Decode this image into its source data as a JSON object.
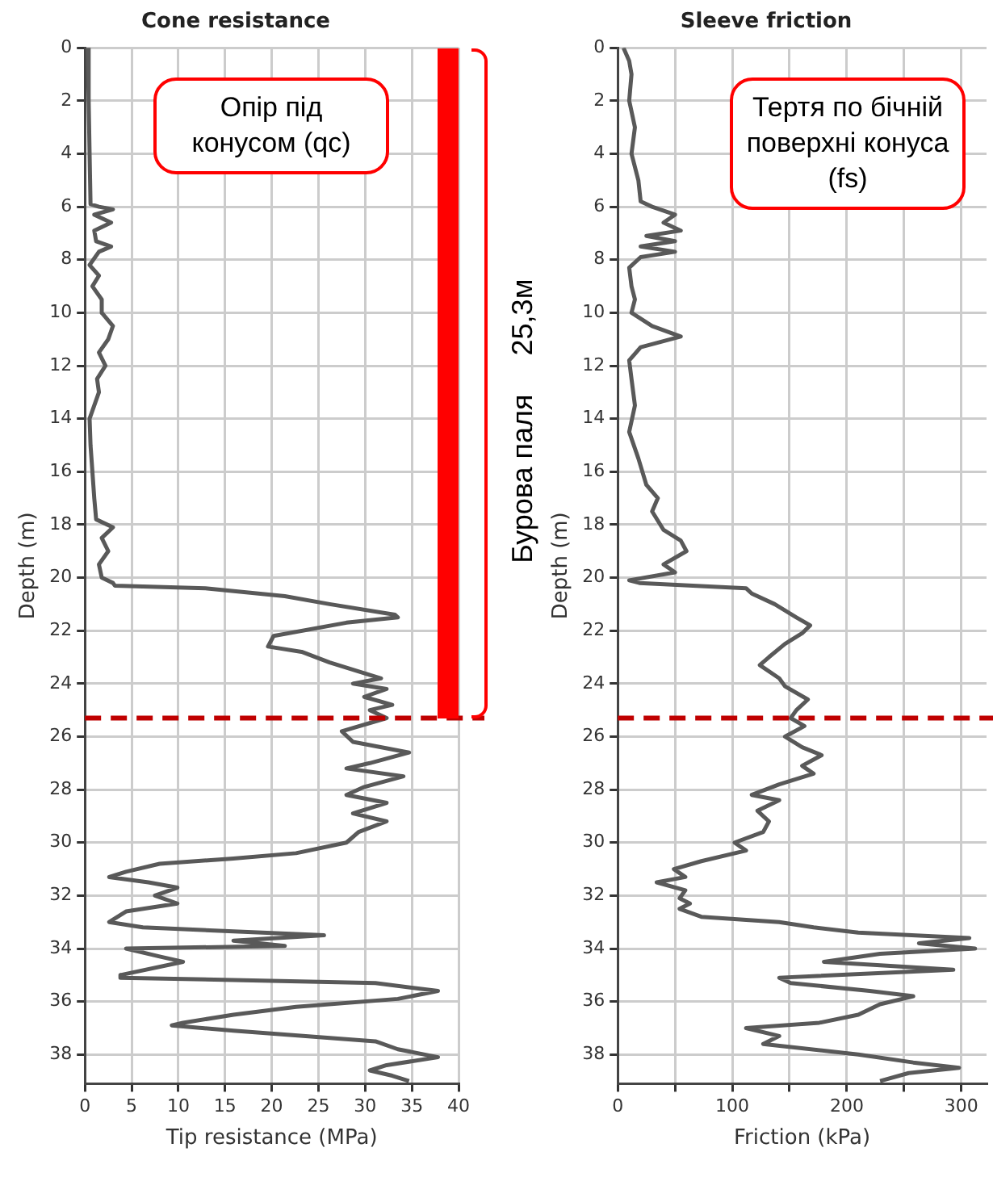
{
  "chart_data": [
    {
      "type": "line",
      "orientation": "horizontal",
      "title": "Cone resistance",
      "xlabel": "Tip resistance (MPa)",
      "ylabel": "Depth (m)",
      "xlim": [
        0,
        40
      ],
      "xticks": [
        0,
        5,
        10,
        15,
        20,
        25,
        30,
        35,
        40
      ],
      "ylim": [
        39.1,
        0
      ],
      "yticks": [
        0,
        2,
        4,
        6,
        8,
        10,
        12,
        14,
        16,
        18,
        20,
        22,
        24,
        26,
        28,
        30,
        32,
        34,
        36,
        38
      ],
      "grid": true,
      "legend": false,
      "marker": "none",
      "line_style": "solid",
      "ref_lines": [
        {
          "axis": "y",
          "value": 25.3,
          "color": "#c00000",
          "line_style": "dashed"
        }
      ],
      "annotations": [
        "Опір під конусом (qc)",
        "Бурова паля",
        "25,3м"
      ],
      "series": [
        {
          "color": "#595959",
          "x": [
            0,
            2,
            4,
            5.9,
            6.0,
            6.1,
            6.3,
            6.6,
            6.9,
            7.3,
            7.5,
            7.7,
            8.2,
            8.6,
            9,
            9.5,
            10,
            10.5,
            11,
            11.5,
            12,
            12.5,
            13,
            14,
            15,
            16,
            17,
            17.8,
            18.1,
            18.5,
            19,
            19.5,
            20,
            20.2,
            20.3,
            20.4,
            20.7,
            21.0,
            21.4,
            21.5,
            21.7,
            22.2,
            22.6,
            22.8,
            23.2,
            23.8,
            24.0,
            24.2,
            24.5,
            24.8,
            25.0,
            25.3,
            25.8,
            26.2,
            26.6,
            27.0,
            27.2,
            27.5,
            27.9,
            28.2,
            28.5,
            28.9,
            29.2,
            29.6,
            30.0,
            30.4,
            30.6,
            30.8,
            31.1,
            31.3,
            31.5,
            31.7,
            32.0,
            32.3,
            32.6,
            33.0,
            33.2,
            33.5,
            33.7,
            33.9,
            34.0,
            34.3,
            34.5,
            35.0,
            35.1,
            35.3,
            35.6,
            35.9,
            36.2,
            36.5,
            36.8,
            36.9,
            37.1,
            37.5,
            37.8,
            38.1,
            38.4,
            38.6,
            38.8,
            39.0
          ],
          "values": [
            0.3,
            0.4,
            0.5,
            0.6,
            1.5,
            3,
            1,
            2.8,
            1,
            1.2,
            2.8,
            1.5,
            0.5,
            1.5,
            0.8,
            1.8,
            1.8,
            3,
            2.5,
            1.5,
            2.2,
            1.3,
            1.5,
            0.5,
            0.6,
            0.8,
            1.0,
            1.2,
            3,
            1.8,
            2.5,
            1.5,
            1.8,
            3,
            3.2,
            12.9,
            21.4,
            26.2,
            33.2,
            33.5,
            28,
            20.2,
            19.6,
            23.2,
            26.2,
            31.7,
            28.7,
            32.3,
            29.9,
            32.9,
            30.5,
            32.3,
            27.5,
            28.7,
            34.7,
            30.5,
            28,
            34.1,
            29.9,
            28,
            32.3,
            28.7,
            32.3,
            29.3,
            28,
            22.6,
            15.9,
            8,
            4.4,
            2.6,
            6.8,
            9.9,
            7.5,
            9.9,
            4.4,
            2.6,
            6.2,
            25.6,
            15.9,
            21.4,
            4.4,
            8,
            10.5,
            3.8,
            3.8,
            31.1,
            37.8,
            33.5,
            22.6,
            15.9,
            10.5,
            9.3,
            15.9,
            31.1,
            33.5,
            37.8,
            32.3,
            30.5,
            32.9,
            34.7
          ]
        }
      ]
    },
    {
      "type": "line",
      "orientation": "horizontal",
      "title": "Sleeve friction",
      "xlabel": "Friction (kPa)",
      "ylabel": "Depth (m)",
      "xlim": [
        0,
        322
      ],
      "xticks": [
        0,
        {
          "value": 50,
          "label": null
        },
        100,
        {
          "value": 150,
          "label": null
        },
        200,
        {
          "value": 250,
          "label": null
        },
        300
      ],
      "ylim": [
        39.1,
        0
      ],
      "yticks": [
        0,
        2,
        4,
        6,
        8,
        10,
        12,
        14,
        16,
        18,
        20,
        22,
        24,
        26,
        28,
        30,
        32,
        34,
        36,
        38
      ],
      "grid": true,
      "legend": false,
      "marker": "none",
      "line_style": "solid",
      "ref_lines": [
        {
          "axis": "y",
          "value": 25.3,
          "color": "#c00000",
          "line_style": "dashed"
        }
      ],
      "annotations": [
        "Тертя по бічній поверхні конуса (fs)"
      ],
      "series": [
        {
          "color": "#595959",
          "x": [
            0,
            0.5,
            1,
            2,
            3,
            4,
            5,
            5.8,
            6.0,
            6.3,
            6.6,
            6.9,
            7.1,
            7.3,
            7.5,
            7.7,
            7.9,
            8.3,
            9,
            9.5,
            10,
            10.5,
            10.9,
            11.3,
            11.8,
            12.5,
            13.5,
            14.5,
            15.5,
            16.5,
            17,
            17.5,
            18.2,
            18.6,
            19,
            19.5,
            19.8,
            20.1,
            20.2,
            20.4,
            20.6,
            21.0,
            21.5,
            21.8,
            22.1,
            22.5,
            23.0,
            23.3,
            23.8,
            24.1,
            24.6,
            25.0,
            25.3,
            25.6,
            26.0,
            26.4,
            26.7,
            27.1,
            27.4,
            27.8,
            28.2,
            28.4,
            28.8,
            29.2,
            29.6,
            30.0,
            30.3,
            30.7,
            31.0,
            31.3,
            31.5,
            31.8,
            32.1,
            32.3,
            32.5,
            32.8,
            33.0,
            33.2,
            33.4,
            33.6,
            33.8,
            34.0,
            34.2,
            34.5,
            34.8,
            35.1,
            35.3,
            35.6,
            35.8,
            36.1,
            36.5,
            36.8,
            37.0,
            37.3,
            37.6,
            38.0,
            38.3,
            38.5,
            38.7,
            39.0
          ],
          "values": [
            5,
            10,
            12,
            10,
            15,
            12,
            18,
            20,
            30,
            50,
            40,
            55,
            25,
            50,
            20,
            50,
            20,
            10,
            12,
            15,
            12,
            30,
            55,
            20,
            10,
            12,
            15,
            10,
            18,
            25,
            35,
            30,
            40,
            55,
            60,
            40,
            50,
            10,
            19,
            112,
            117,
            137,
            156,
            168,
            161,
            146,
            132,
            124,
            141,
            146,
            166,
            156,
            151,
            163,
            146,
            161,
            178,
            161,
            171,
            141,
            117,
            141,
            122,
            132,
            127,
            102,
            112,
            73,
            49,
            59,
            34,
            59,
            54,
            63,
            54,
            73,
            141,
            171,
            210,
            307,
            263,
            312,
            229,
            180,
            293,
            141,
            151,
            220,
            258,
            229,
            210,
            176,
            112,
            141,
            127,
            210,
            258,
            298,
            254,
            229
          ]
        }
      ]
    }
  ]
}
